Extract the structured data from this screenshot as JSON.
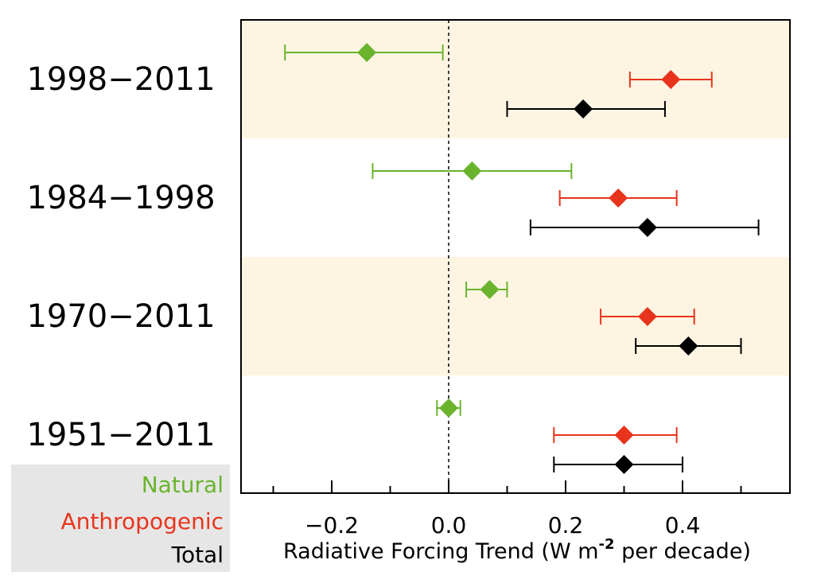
{
  "chart_data": {
    "type": "scatter",
    "xlabel_main": "Radiative Forcing Trend (W m",
    "xlabel_sup": "-2",
    "xlabel_tail": " per decade)",
    "xlim": [
      -0.35,
      0.58
    ],
    "xticks": [
      -0.2,
      0.0,
      0.2,
      0.4
    ],
    "xtick_labels": [
      "−0.2",
      "0.0",
      "0.2",
      "0.4"
    ],
    "zero_line": {
      "x": 0.0,
      "style": "dotted"
    },
    "categories": [
      "1998−2011",
      "1984−1998",
      "1970−2011",
      "1951−2011"
    ],
    "shaded_bands": [
      true,
      false,
      true,
      false
    ],
    "band_color": "#fdf5e2",
    "series": [
      {
        "name": "Natural",
        "color": "#6ab42d",
        "values": [
          {
            "period": "1998−2011",
            "center": -0.14,
            "low": -0.28,
            "high": -0.01
          },
          {
            "period": "1984−1998",
            "center": 0.04,
            "low": -0.13,
            "high": 0.21
          },
          {
            "period": "1970−2011",
            "center": 0.07,
            "low": 0.03,
            "high": 0.1
          },
          {
            "period": "1951−2011",
            "center": 0.0,
            "low": -0.02,
            "high": 0.02
          }
        ]
      },
      {
        "name": "Anthropogenic",
        "color": "#e8341c",
        "values": [
          {
            "period": "1998−2011",
            "center": 0.38,
            "low": 0.31,
            "high": 0.45
          },
          {
            "period": "1984−1998",
            "center": 0.29,
            "low": 0.19,
            "high": 0.39
          },
          {
            "period": "1970−2011",
            "center": 0.34,
            "low": 0.26,
            "high": 0.42
          },
          {
            "period": "1951−2011",
            "center": 0.3,
            "low": 0.18,
            "high": 0.39
          }
        ]
      },
      {
        "name": "Total",
        "color": "#000000",
        "values": [
          {
            "period": "1998−2011",
            "center": 0.23,
            "low": 0.1,
            "high": 0.37
          },
          {
            "period": "1984−1998",
            "center": 0.34,
            "low": 0.14,
            "high": 0.53
          },
          {
            "period": "1970−2011",
            "center": 0.41,
            "low": 0.32,
            "high": 0.5
          },
          {
            "period": "1951−2011",
            "center": 0.3,
            "low": 0.18,
            "high": 0.4
          }
        ]
      }
    ]
  },
  "legend": {
    "natural": "Natural",
    "anthropogenic": "Anthropogenic",
    "total": "Total"
  }
}
